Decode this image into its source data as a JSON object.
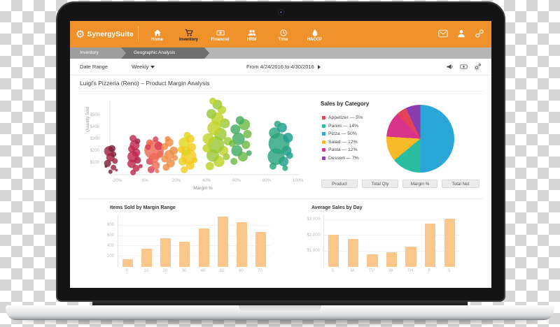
{
  "brand": {
    "name": "SynergySuite"
  },
  "colors": {
    "accent": "#f0922c",
    "bar_fill": "#f9c68b"
  },
  "nav": {
    "items": [
      {
        "label": "Home"
      },
      {
        "label": "Inventory"
      },
      {
        "label": "Financial"
      },
      {
        "label": "HRM"
      },
      {
        "label": "Time"
      },
      {
        "label": "HACCP"
      }
    ],
    "active": "Inventory"
  },
  "breadcrumb": {
    "items": [
      "Inventory",
      "Geographic Analysis"
    ]
  },
  "toolbar": {
    "date_range_label": "Date Range",
    "period": "Weekly",
    "range_text": "From 4/24/2016 to 4/30/2016"
  },
  "page": {
    "title": "Luigi's Pizzeria (Reno) – Product Margin Analysis"
  },
  "buttons": {
    "labels": [
      "Product",
      "Total Qty",
      "Margin %",
      "Total Net"
    ]
  },
  "chart_data": [
    {
      "type": "scatter",
      "title": "Product Margin bubble chart",
      "xlabel": "Margin %",
      "ylabel": "Quantity Sold",
      "xlim": [
        -30,
        105
      ],
      "ylim": [
        0,
        650
      ],
      "x_tick_values": [
        -20,
        0,
        20,
        40,
        60,
        80,
        100
      ],
      "x_tick_labels": [
        "-20%",
        "0%",
        "20%",
        "40%",
        "60%",
        "80%",
        "100%"
      ],
      "y_tick_values": [
        100,
        200,
        300,
        400,
        500
      ],
      "y_tick_labels": [
        "$100",
        "$200",
        "$300",
        "$400",
        "$500"
      ],
      "colors": [
        "#7e1f3b",
        "#9e2343",
        "#bf2a4e",
        "#d84058",
        "#eb6b55",
        "#f08b42",
        "#f3a72e",
        "#f3ca1d",
        "#e3d51e",
        "#bfd32a",
        "#9cc938",
        "#6eba45",
        "#43ac63",
        "#29a57d",
        "#1d9e8e"
      ],
      "points": [
        [
          -21,
          25,
          3,
          0
        ],
        [
          -19,
          60,
          4,
          1
        ],
        [
          -23,
          95,
          5,
          0
        ],
        [
          -18,
          115,
          4,
          1
        ],
        [
          -21,
          145,
          6,
          1
        ],
        [
          -19,
          172,
          4,
          0
        ],
        [
          -22,
          198,
          7,
          1
        ],
        [
          -20,
          220,
          5,
          0
        ],
        [
          -24,
          70,
          2,
          0
        ],
        [
          -17,
          38,
          2,
          1
        ],
        [
          -6,
          18,
          4,
          2
        ],
        [
          -4,
          55,
          5,
          2
        ],
        [
          -7,
          92,
          6,
          2
        ],
        [
          -3,
          122,
          5,
          1
        ],
        [
          -6,
          152,
          8,
          2
        ],
        [
          -4,
          186,
          6,
          2
        ],
        [
          -7,
          216,
          5,
          2
        ],
        [
          -5,
          248,
          7,
          2
        ],
        [
          -3,
          282,
          4,
          1
        ],
        [
          -6,
          305,
          5,
          2
        ],
        [
          -1,
          72,
          3,
          2
        ],
        [
          6,
          42,
          5,
          3
        ],
        [
          9,
          78,
          6,
          4
        ],
        [
          5,
          112,
          5,
          3
        ],
        [
          8,
          142,
          7,
          4
        ],
        [
          8,
          208,
          14,
          4
        ],
        [
          11,
          242,
          6,
          3
        ],
        [
          5,
          268,
          5,
          4
        ],
        [
          9,
          298,
          4,
          3
        ],
        [
          12,
          172,
          5,
          4
        ],
        [
          4,
          232,
          4,
          3
        ],
        [
          10,
          30,
          3,
          4
        ],
        [
          16,
          62,
          5,
          5
        ],
        [
          19,
          97,
          6,
          5
        ],
        [
          15,
          132,
          5,
          5
        ],
        [
          18,
          167,
          7,
          5
        ],
        [
          21,
          202,
          6,
          5
        ],
        [
          15,
          237,
          5,
          5
        ],
        [
          18,
          272,
          6,
          5
        ],
        [
          22,
          142,
          4,
          5
        ],
        [
          17,
          302,
          4,
          5
        ],
        [
          28,
          42,
          5,
          7
        ],
        [
          32,
          78,
          6,
          7
        ],
        [
          27,
          112,
          6,
          8
        ],
        [
          31,
          152,
          11,
          7
        ],
        [
          29,
          197,
          7,
          8
        ],
        [
          33,
          232,
          6,
          7
        ],
        [
          28,
          267,
          8,
          8
        ],
        [
          32,
          302,
          6,
          7
        ],
        [
          30,
          332,
          5,
          8
        ],
        [
          35,
          122,
          4,
          7
        ],
        [
          26,
          212,
          5,
          7
        ],
        [
          45,
          72,
          6,
          9
        ],
        [
          51,
          112,
          8,
          9
        ],
        [
          47,
          162,
          9,
          10
        ],
        [
          54,
          202,
          7,
          9
        ],
        [
          49,
          252,
          12,
          10
        ],
        [
          44,
          302,
          8,
          9
        ],
        [
          52,
          342,
          9,
          10
        ],
        [
          48,
          392,
          10,
          9
        ],
        [
          55,
          432,
          7,
          10
        ],
        [
          50,
          472,
          9,
          9
        ],
        [
          46,
          512,
          7,
          10
        ],
        [
          57,
          282,
          6,
          10
        ],
        [
          43,
          222,
          6,
          9
        ],
        [
          53,
          545,
          6,
          9
        ],
        [
          56,
          152,
          5,
          10
        ],
        [
          50,
          590,
          7,
          10
        ],
        [
          47,
          620,
          5,
          9
        ],
        [
          61,
          112,
          5,
          11
        ],
        [
          67,
          152,
          7,
          11
        ],
        [
          63,
          202,
          8,
          12
        ],
        [
          69,
          252,
          6,
          11
        ],
        [
          64,
          302,
          9,
          12
        ],
        [
          70,
          342,
          6,
          11
        ],
        [
          62,
          382,
          7,
          12
        ],
        [
          68,
          422,
          8,
          11
        ],
        [
          65,
          458,
          6,
          12
        ],
        [
          71,
          182,
          4,
          12
        ],
        [
          60,
          262,
          5,
          11
        ],
        [
          87,
          72,
          5,
          13
        ],
        [
          94,
          112,
          7,
          14
        ],
        [
          89,
          152,
          12,
          13
        ],
        [
          96,
          202,
          7,
          14
        ],
        [
          91,
          262,
          15,
          13
        ],
        [
          97,
          312,
          7,
          14
        ],
        [
          88,
          352,
          8,
          13
        ],
        [
          93,
          396,
          7,
          14
        ],
        [
          90,
          425,
          5,
          13
        ],
        [
          98,
          162,
          5,
          14
        ],
        [
          95,
          55,
          4,
          13
        ]
      ]
    },
    {
      "type": "pie",
      "title": "Sales by Category",
      "slices": [
        {
          "label": "Appetizer",
          "pct": 5,
          "display": "Appetizer — 5%",
          "color": "#e3425a"
        },
        {
          "label": "Panini",
          "pct": 14,
          "display": "Panini — 14%",
          "color": "#2bbda2"
        },
        {
          "label": "Pizza",
          "pct": 50,
          "display": "Pizza — 50%",
          "color": "#2aa6d9"
        },
        {
          "label": "Salad",
          "pct": 12,
          "display": "Salad — 12%",
          "color": "#f8ba29"
        },
        {
          "label": "Pasta",
          "pct": 12,
          "display": "Pasta — 12%",
          "color": "#d9348c"
        },
        {
          "label": "Dessert",
          "pct": 7,
          "display": "Dessert — 7%",
          "color": "#8a3dae"
        }
      ],
      "draw_order": [
        2,
        1,
        3,
        4,
        0,
        5
      ],
      "legend_position": "left"
    },
    {
      "type": "bar",
      "title": "Items Sold by Margin Range",
      "categories": [
        "0",
        "10",
        "20",
        "30",
        "40",
        "50",
        "60",
        "70"
      ],
      "values": [
        150,
        350,
        555,
        480,
        750,
        970,
        865,
        670
      ],
      "tick_values": [
        200,
        400,
        600,
        800
      ],
      "tick_labels": [
        "200",
        "400",
        "600",
        "800"
      ],
      "ymax": 1000,
      "xlabel": "",
      "ylabel": ""
    },
    {
      "type": "bar",
      "title": "Average Sales by Day",
      "categories": [
        "S",
        "M",
        "TU",
        "W",
        "TH",
        "F",
        "S"
      ],
      "values": [
        2050,
        1780,
        820,
        950,
        1280,
        2750,
        3080
      ],
      "tick_values": [
        1000,
        2000,
        3000
      ],
      "tick_labels": [
        "$1,000",
        "$2,000",
        "$3,000"
      ],
      "ymax": 3300,
      "xlabel": "",
      "ylabel": ""
    }
  ]
}
